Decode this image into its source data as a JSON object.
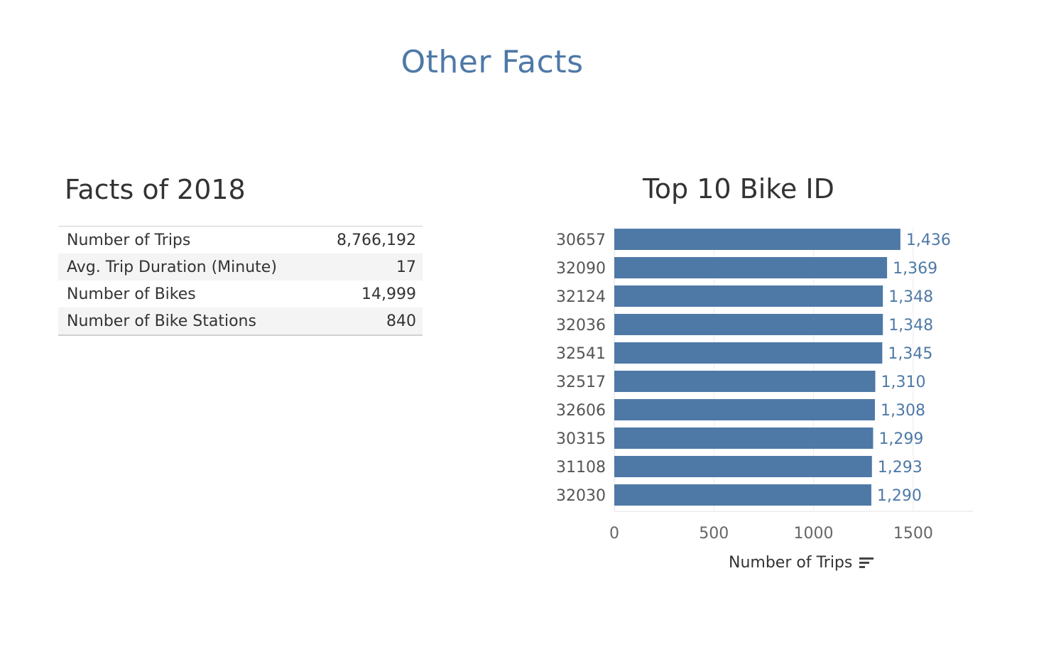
{
  "page": {
    "title": "Other Facts"
  },
  "facts": {
    "title": "Facts of 2018",
    "rows": [
      {
        "label": "Number of Trips",
        "value": "8,766,192"
      },
      {
        "label": "Avg. Trip Duration (Minute)",
        "value": "17"
      },
      {
        "label": "Number of Bikes",
        "value": "14,999"
      },
      {
        "label": "Number of Bike Stations",
        "value": "840"
      }
    ]
  },
  "chart_data": {
    "type": "bar",
    "orientation": "horizontal",
    "title": "Top 10 Bike ID",
    "xlabel": "Number of Trips",
    "ylabel": "",
    "categories": [
      "30657",
      "32090",
      "32124",
      "32036",
      "32541",
      "32517",
      "32606",
      "30315",
      "31108",
      "32030"
    ],
    "values": [
      1436,
      1369,
      1348,
      1348,
      1345,
      1310,
      1308,
      1299,
      1293,
      1290
    ],
    "value_labels": [
      "1,436",
      "1,369",
      "1,348",
      "1,348",
      "1,345",
      "1,310",
      "1,308",
      "1,299",
      "1,293",
      "1,290"
    ],
    "x_ticks": [
      "0",
      "500",
      "1000",
      "1500"
    ],
    "xlim": [
      0,
      1800
    ],
    "grid": true,
    "bar_color": "#4e79a7",
    "label_color": "#4e79a7",
    "xaxis_icon": "sort-descending-icon"
  }
}
